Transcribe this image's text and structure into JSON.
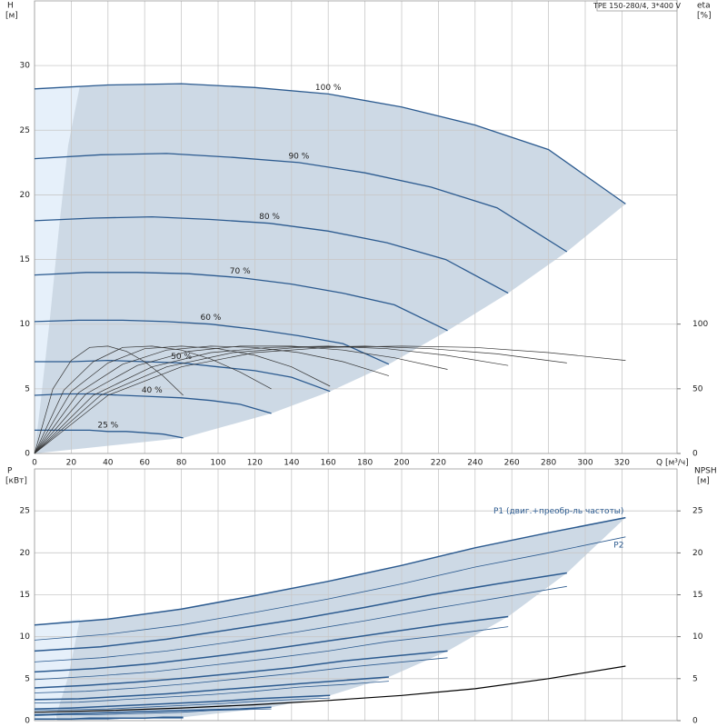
{
  "chart_data": [
    {
      "type": "line",
      "title": "TPE 150-280/4, 3*400 V",
      "y_label": "H",
      "y_unit": "[м]",
      "y2_label": "eta",
      "y2_unit": "[%]",
      "x_label": "Q [м³/ч]",
      "xlim": [
        0,
        350
      ],
      "xticks": [
        0,
        20,
        40,
        60,
        80,
        100,
        120,
        140,
        160,
        180,
        200,
        220,
        240,
        260,
        280,
        300,
        320
      ],
      "ylim": [
        0,
        35
      ],
      "yticks": [
        0,
        5,
        10,
        15,
        20,
        25,
        30
      ],
      "y2lim": [
        0,
        350
      ],
      "y2ticks": [
        0,
        50,
        100
      ],
      "grid": true,
      "series": [
        {
          "name": "100 %",
          "color": "#2b5a8f",
          "line_width": 1.3,
          "x": [
            0,
            40,
            80,
            120,
            160,
            200,
            240,
            280,
            322
          ],
          "values": [
            28.2,
            28.5,
            28.6,
            28.3,
            27.8,
            26.8,
            25.4,
            23.5,
            19.3
          ]
        },
        {
          "name": "90 %",
          "color": "#2b5a8f",
          "line_width": 1.3,
          "x": [
            0,
            36,
            72,
            108,
            144,
            180,
            216,
            252,
            290
          ],
          "values": [
            22.8,
            23.1,
            23.2,
            22.9,
            22.5,
            21.7,
            20.6,
            19.0,
            15.6
          ]
        },
        {
          "name": "80 %",
          "color": "#2b5a8f",
          "line_width": 1.3,
          "x": [
            0,
            32,
            64,
            96,
            128,
            160,
            192,
            224,
            258
          ],
          "values": [
            18.0,
            18.2,
            18.3,
            18.1,
            17.8,
            17.2,
            16.3,
            15.0,
            12.4
          ]
        },
        {
          "name": "70 %",
          "color": "#2b5a8f",
          "line_width": 1.3,
          "x": [
            0,
            28,
            56,
            84,
            112,
            140,
            168,
            196,
            225
          ],
          "values": [
            13.8,
            14.0,
            14.0,
            13.9,
            13.6,
            13.1,
            12.4,
            11.5,
            9.5
          ]
        },
        {
          "name": "60 %",
          "color": "#2b5a8f",
          "line_width": 1.3,
          "x": [
            0,
            24,
            48,
            72,
            96,
            120,
            144,
            168,
            193
          ],
          "values": [
            10.2,
            10.3,
            10.3,
            10.2,
            10.0,
            9.6,
            9.1,
            8.5,
            6.9
          ]
        },
        {
          "name": "50 %",
          "color": "#2b5a8f",
          "line_width": 1.3,
          "x": [
            0,
            20,
            40,
            60,
            80,
            100,
            120,
            140,
            161
          ],
          "values": [
            7.1,
            7.1,
            7.2,
            7.1,
            7.0,
            6.7,
            6.4,
            5.9,
            4.8
          ]
        },
        {
          "name": "40 %",
          "color": "#2b5a8f",
          "line_width": 1.3,
          "x": [
            0,
            16,
            32,
            48,
            64,
            80,
            96,
            112,
            129
          ],
          "values": [
            4.5,
            4.6,
            4.6,
            4.5,
            4.4,
            4.3,
            4.1,
            3.8,
            3.1
          ]
        },
        {
          "name": "25 %",
          "color": "#2b5a8f",
          "line_width": 1.3,
          "x": [
            0,
            10,
            20,
            30,
            40,
            50,
            60,
            70,
            81
          ],
          "values": [
            1.8,
            1.8,
            1.8,
            1.8,
            1.7,
            1.7,
            1.6,
            1.5,
            1.2
          ]
        },
        {
          "axis": "y2",
          "color": "#333333",
          "line_width": 0.7,
          "x": [
            0,
            40,
            80,
            120,
            160,
            200,
            240,
            280,
            322
          ],
          "values": [
            0,
            45,
            67,
            78,
            82,
            83,
            82,
            78,
            72
          ]
        },
        {
          "axis": "y2",
          "color": "#333333",
          "line_width": 0.7,
          "x": [
            0,
            36,
            72,
            108,
            144,
            180,
            216,
            252,
            290
          ],
          "values": [
            0,
            45,
            67,
            78,
            82,
            83,
            81,
            77,
            70
          ]
        },
        {
          "axis": "y2",
          "color": "#333333",
          "line_width": 0.7,
          "x": [
            0,
            32,
            64,
            96,
            128,
            160,
            192,
            224,
            258
          ],
          "values": [
            0,
            45,
            67,
            78,
            82,
            83,
            81,
            76,
            68
          ]
        },
        {
          "axis": "y2",
          "color": "#333333",
          "line_width": 0.7,
          "x": [
            0,
            28,
            56,
            84,
            112,
            140,
            168,
            196,
            225
          ],
          "values": [
            0,
            46,
            68,
            79,
            83,
            83,
            80,
            74,
            65
          ]
        },
        {
          "axis": "y2",
          "color": "#333333",
          "line_width": 0.7,
          "x": [
            0,
            24,
            48,
            72,
            96,
            120,
            144,
            168,
            193
          ],
          "values": [
            0,
            47,
            69,
            80,
            83,
            82,
            78,
            71,
            60
          ]
        },
        {
          "axis": "y2",
          "color": "#333333",
          "line_width": 0.7,
          "x": [
            0,
            20,
            40,
            60,
            80,
            100,
            120,
            140,
            161
          ],
          "values": [
            0,
            48,
            70,
            81,
            83,
            81,
            76,
            67,
            52
          ]
        },
        {
          "axis": "y2",
          "color": "#333333",
          "line_width": 0.7,
          "x": [
            0,
            16,
            32,
            48,
            64,
            80,
            96,
            112,
            129
          ],
          "values": [
            0,
            49,
            71,
            82,
            83,
            80,
            73,
            63,
            50
          ]
        },
        {
          "axis": "y2",
          "color": "#333333",
          "line_width": 0.7,
          "x": [
            0,
            10,
            20,
            30,
            40,
            50,
            60,
            70,
            81
          ],
          "values": [
            0,
            50,
            72,
            82,
            83,
            79,
            71,
            60,
            45
          ]
        }
      ]
    },
    {
      "type": "line",
      "y_label": "P",
      "y_unit": "[кВт]",
      "y2_label": "NPSH",
      "y2_unit": "[м]",
      "xlim": [
        0,
        350
      ],
      "ylim": [
        0,
        30
      ],
      "yticks": [
        0,
        5,
        10,
        15,
        20,
        25
      ],
      "y2lim": [
        0,
        30
      ],
      "y2ticks": [
        0,
        5,
        10,
        15,
        20,
        25
      ],
      "grid": true,
      "series": [
        {
          "name": "P1 (двиг.+преобр-ль частоты)",
          "color": "#2b5a8f",
          "line_width": 1.5,
          "x": [
            0,
            40,
            80,
            120,
            160,
            200,
            240,
            280,
            322
          ],
          "values": [
            11.4,
            12.1,
            13.3,
            14.9,
            16.6,
            18.5,
            20.6,
            22.4,
            24.2
          ]
        },
        {
          "color": "#2b5a8f",
          "line_width": 1.5,
          "x": [
            0,
            36,
            72,
            108,
            144,
            180,
            216,
            252,
            290
          ],
          "values": [
            8.3,
            8.8,
            9.7,
            10.9,
            12.1,
            13.5,
            15.0,
            16.3,
            17.6
          ]
        },
        {
          "color": "#2b5a8f",
          "line_width": 1.5,
          "x": [
            0,
            32,
            64,
            96,
            128,
            160,
            192,
            224,
            258
          ],
          "values": [
            5.8,
            6.2,
            6.8,
            7.6,
            8.5,
            9.5,
            10.5,
            11.5,
            12.4
          ]
        },
        {
          "color": "#2b5a8f",
          "line_width": 1.5,
          "x": [
            0,
            28,
            56,
            84,
            112,
            140,
            168,
            196,
            225
          ],
          "values": [
            3.9,
            4.2,
            4.6,
            5.1,
            5.7,
            6.3,
            7.1,
            7.7,
            8.3
          ]
        },
        {
          "color": "#2b5a8f",
          "line_width": 1.5,
          "x": [
            0,
            24,
            48,
            72,
            96,
            120,
            144,
            168,
            193
          ],
          "values": [
            2.5,
            2.6,
            2.9,
            3.2,
            3.6,
            4.0,
            4.4,
            4.8,
            5.2
          ]
        },
        {
          "color": "#2b5a8f",
          "line_width": 1.5,
          "x": [
            0,
            20,
            40,
            60,
            80,
            100,
            120,
            140,
            161
          ],
          "values": [
            1.4,
            1.5,
            1.7,
            1.9,
            2.1,
            2.3,
            2.6,
            2.8,
            3.0
          ]
        },
        {
          "color": "#2b5a8f",
          "line_width": 1.5,
          "x": [
            0,
            16,
            32,
            48,
            64,
            80,
            96,
            112,
            129
          ],
          "values": [
            0.7,
            0.8,
            0.9,
            1.0,
            1.1,
            1.2,
            1.3,
            1.4,
            1.6
          ]
        },
        {
          "color": "#2b5a8f",
          "line_width": 1.5,
          "x": [
            0,
            10,
            20,
            30,
            40,
            50,
            60,
            70,
            81
          ],
          "values": [
            0.2,
            0.2,
            0.2,
            0.3,
            0.3,
            0.3,
            0.3,
            0.4,
            0.4
          ]
        },
        {
          "name": "P2",
          "color": "#2b5a8f",
          "line_width": 0.8,
          "x": [
            0,
            40,
            80,
            120,
            160,
            200,
            240,
            280,
            322
          ],
          "values": [
            9.6,
            10.3,
            11.4,
            12.9,
            14.5,
            16.3,
            18.3,
            20.0,
            21.9
          ]
        },
        {
          "color": "#2b5a8f",
          "line_width": 0.8,
          "x": [
            0,
            36,
            72,
            108,
            144,
            180,
            216,
            252,
            290
          ],
          "values": [
            7.0,
            7.5,
            8.3,
            9.4,
            10.6,
            11.9,
            13.3,
            14.6,
            16.0
          ]
        },
        {
          "color": "#2b5a8f",
          "line_width": 0.8,
          "x": [
            0,
            32,
            64,
            96,
            128,
            160,
            192,
            224,
            258
          ],
          "values": [
            4.9,
            5.3,
            5.8,
            6.6,
            7.4,
            8.3,
            9.4,
            10.2,
            11.2
          ]
        },
        {
          "color": "#2b5a8f",
          "line_width": 0.8,
          "x": [
            0,
            28,
            56,
            84,
            112,
            140,
            168,
            196,
            225
          ],
          "values": [
            3.3,
            3.5,
            3.9,
            4.4,
            5.0,
            5.6,
            6.3,
            6.9,
            7.5
          ]
        },
        {
          "color": "#2b5a8f",
          "line_width": 0.8,
          "x": [
            0,
            24,
            48,
            72,
            96,
            120,
            144,
            168,
            193
          ],
          "values": [
            2.1,
            2.2,
            2.5,
            2.8,
            3.1,
            3.5,
            4.0,
            4.3,
            4.7
          ]
        },
        {
          "color": "#2b5a8f",
          "line_width": 0.8,
          "x": [
            0,
            20,
            40,
            60,
            80,
            100,
            120,
            140,
            161
          ],
          "values": [
            1.2,
            1.3,
            1.4,
            1.6,
            1.8,
            2.0,
            2.3,
            2.5,
            2.7
          ]
        },
        {
          "color": "#2b5a8f",
          "line_width": 0.8,
          "x": [
            0,
            16,
            32,
            48,
            64,
            80,
            96,
            112,
            129
          ],
          "values": [
            0.6,
            0.7,
            0.7,
            0.8,
            0.9,
            1.0,
            1.2,
            1.3,
            1.4
          ]
        },
        {
          "color": "#2b5a8f",
          "line_width": 0.8,
          "x": [
            0,
            10,
            20,
            30,
            40,
            50,
            60,
            70,
            81
          ],
          "values": [
            0.2,
            0.2,
            0.2,
            0.2,
            0.2,
            0.3,
            0.3,
            0.3,
            0.3
          ]
        },
        {
          "axis": "y2",
          "color": "#000000",
          "line_width": 1.2,
          "x": [
            0,
            40,
            80,
            120,
            160,
            200,
            240,
            280,
            322
          ],
          "values": [
            1.0,
            1.2,
            1.5,
            1.9,
            2.4,
            3.0,
            3.8,
            5.0,
            6.5
          ]
        }
      ]
    }
  ]
}
